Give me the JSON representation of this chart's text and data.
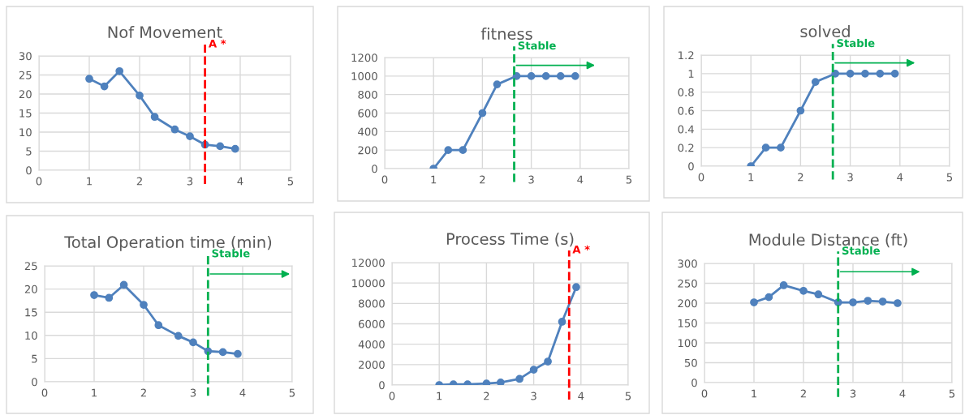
{
  "chart_data": [
    {
      "type": "line",
      "title": "Nof Movement",
      "x": [
        1,
        1.3,
        1.6,
        2,
        2.3,
        2.7,
        3,
        3.3,
        3.6,
        3.9
      ],
      "series": [
        {
          "color": "#4f81bd",
          "values": [
            24,
            22,
            26,
            19.6,
            14,
            10.7,
            8.9,
            6.7,
            6.3,
            5.6
          ]
        }
      ],
      "xlim": [
        0,
        5
      ],
      "xticks": [
        0,
        1,
        2,
        3,
        4,
        5
      ],
      "ylim": [
        0,
        30
      ],
      "yticks": [
        0,
        5,
        10,
        15,
        20,
        25,
        30
      ],
      "grid": true,
      "marker": "circle",
      "line_style": "solid",
      "ref_lines": [
        {
          "axis": "x",
          "value": 3.3,
          "label": "A *",
          "color": "#ff0000",
          "line_style": "dashed"
        }
      ]
    },
    {
      "type": "line",
      "title": "fitness",
      "x": [
        1,
        1.3,
        1.6,
        2,
        2.3,
        2.7,
        3,
        3.3,
        3.6,
        3.9
      ],
      "series": [
        {
          "color": "#4f81bd",
          "values": [
            0,
            200,
            200,
            600,
            910,
            1000,
            1000,
            1000,
            1000,
            1000
          ]
        }
      ],
      "xlim": [
        0,
        5
      ],
      "xticks": [
        0,
        1,
        2,
        3,
        4,
        5
      ],
      "ylim": [
        0,
        1200
      ],
      "yticks": [
        0,
        200,
        400,
        600,
        800,
        1000,
        1200
      ],
      "grid": true,
      "marker": "circle",
      "line_style": "solid",
      "ref_lines": [
        {
          "axis": "x",
          "value": 2.65,
          "label": "Stable",
          "color": "#00b050",
          "line_style": "dashed"
        }
      ]
    },
    {
      "type": "line",
      "title": "solved",
      "x": [
        1,
        1.3,
        1.6,
        2,
        2.3,
        2.7,
        3,
        3.3,
        3.6,
        3.9
      ],
      "series": [
        {
          "color": "#4f81bd",
          "values": [
            0,
            0.2,
            0.2,
            0.6,
            0.91,
            1,
            1,
            1,
            1,
            1
          ]
        }
      ],
      "xlim": [
        0,
        5
      ],
      "xticks": [
        0,
        1,
        2,
        3,
        4,
        5
      ],
      "ylim": [
        0,
        1.2
      ],
      "yticks": [
        0,
        0.2,
        0.4,
        0.6,
        0.8,
        1,
        1.2
      ],
      "grid": true,
      "marker": "circle",
      "line_style": "solid",
      "ref_lines": [
        {
          "axis": "x",
          "value": 2.65,
          "label": "Stable",
          "color": "#00b050",
          "line_style": "dashed"
        }
      ]
    },
    {
      "type": "line",
      "title": "Total Operation time (min)",
      "x": [
        1,
        1.3,
        1.6,
        2,
        2.3,
        2.7,
        3,
        3.3,
        3.6,
        3.9
      ],
      "series": [
        {
          "color": "#4f81bd",
          "values": [
            18.7,
            18.1,
            20.9,
            16.6,
            12.2,
            9.9,
            8.5,
            6.6,
            6.4,
            6.0
          ]
        }
      ],
      "xlim": [
        0,
        5
      ],
      "xticks": [
        0,
        1,
        2,
        3,
        4,
        5
      ],
      "ylim": [
        0,
        25
      ],
      "yticks": [
        0,
        5,
        10,
        15,
        20,
        25
      ],
      "grid": true,
      "marker": "circle",
      "line_style": "solid",
      "ref_lines": [
        {
          "axis": "x",
          "value": 3.3,
          "label": "Stable",
          "color": "#00b050",
          "line_style": "dashed"
        }
      ]
    },
    {
      "type": "line",
      "title": "Process Time (s)",
      "x": [
        1,
        1.3,
        1.6,
        2,
        2.3,
        2.7,
        3,
        3.3,
        3.6,
        3.9
      ],
      "series": [
        {
          "color": "#4f81bd",
          "values": [
            0,
            70,
            70,
            150,
            250,
            600,
            1500,
            2300,
            6200,
            9600
          ]
        }
      ],
      "xlim": [
        0,
        5
      ],
      "xticks": [
        0,
        1,
        2,
        3,
        4,
        5
      ],
      "ylim": [
        0,
        12000
      ],
      "yticks": [
        0,
        2000,
        4000,
        6000,
        8000,
        10000,
        12000
      ],
      "grid": true,
      "marker": "circle",
      "line_style": "solid",
      "ref_lines": [
        {
          "axis": "x",
          "value": 3.75,
          "label": "A *",
          "color": "#ff0000",
          "line_style": "dashed"
        }
      ]
    },
    {
      "type": "line",
      "title": "Module Distance (ft)",
      "x": [
        1,
        1.3,
        1.6,
        2,
        2.3,
        2.7,
        3,
        3.3,
        3.6,
        3.9
      ],
      "series": [
        {
          "color": "#4f81bd",
          "values": [
            202,
            215,
            245,
            231,
            222,
            202,
            202,
            206,
            204,
            200
          ]
        }
      ],
      "xlim": [
        0,
        5
      ],
      "xticks": [
        0,
        1,
        2,
        3,
        4,
        5
      ],
      "ylim": [
        0,
        300
      ],
      "yticks": [
        0,
        50,
        100,
        150,
        200,
        250,
        300
      ],
      "grid": true,
      "marker": "circle",
      "line_style": "solid",
      "ref_lines": [
        {
          "axis": "x",
          "value": 2.7,
          "label": "Stable",
          "color": "#00b050",
          "line_style": "dashed"
        }
      ]
    }
  ]
}
